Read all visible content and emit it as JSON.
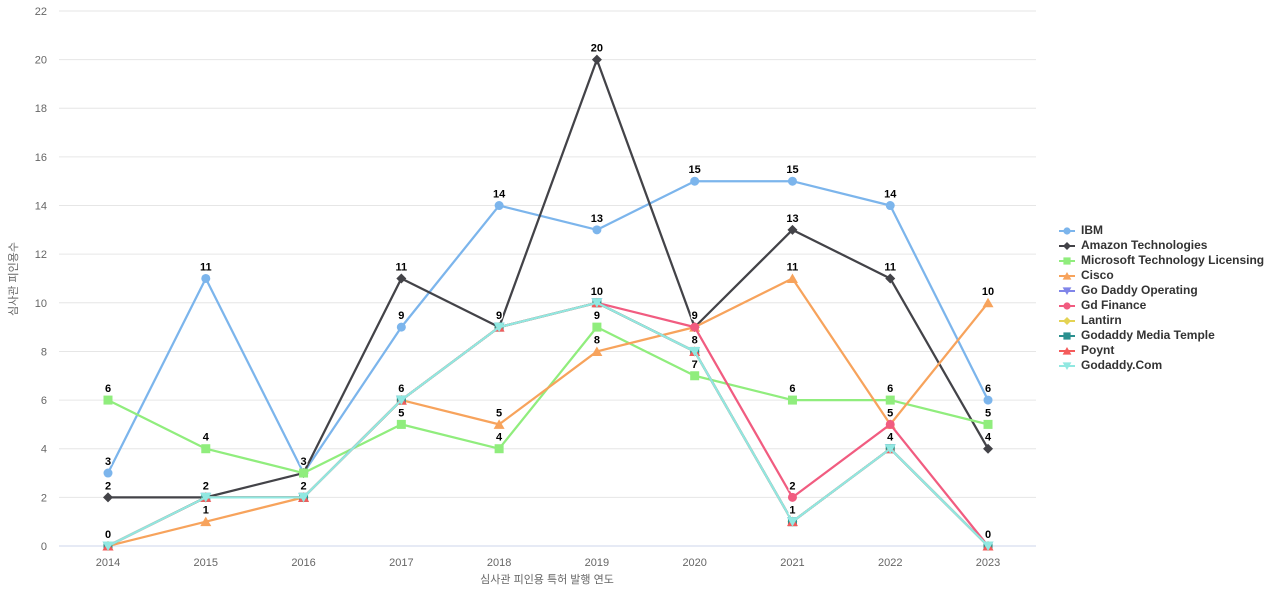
{
  "chart_data": {
    "type": "line",
    "title": "",
    "x": [
      "2014",
      "2015",
      "2016",
      "2017",
      "2018",
      "2019",
      "2020",
      "2021",
      "2022",
      "2023"
    ],
    "xlabel": "심사관 피인용 특허 발행 연도",
    "ylabel": "심사관 피인용수",
    "ylim": [
      0,
      22
    ],
    "yticks": [
      0,
      2,
      4,
      6,
      8,
      10,
      12,
      14,
      16,
      18,
      20,
      22
    ],
    "grid": true,
    "legend_position": "right",
    "data_labels": true,
    "series": [
      {
        "name": "IBM",
        "color": "#7cb5ec",
        "marker": "circle",
        "values": [
          3,
          11,
          3,
          9,
          14,
          13,
          15,
          15,
          14,
          6
        ]
      },
      {
        "name": "Amazon Technologies",
        "color": "#434348",
        "marker": "diamond",
        "values": [
          2,
          2,
          3,
          11,
          9,
          20,
          9,
          13,
          11,
          4
        ]
      },
      {
        "name": "Microsoft Technology Licensing",
        "color": "#90ed7d",
        "marker": "square",
        "values": [
          6,
          4,
          3,
          5,
          4,
          9,
          7,
          6,
          6,
          5
        ]
      },
      {
        "name": "Cisco",
        "color": "#f7a35c",
        "marker": "triangle",
        "values": [
          0,
          1,
          2,
          6,
          5,
          8,
          9,
          11,
          5,
          10
        ]
      },
      {
        "name": "Go Daddy Operating",
        "color": "#8085e9",
        "marker": "triangle-down",
        "values": [
          0,
          2,
          2,
          6,
          9,
          10,
          8,
          1,
          4,
          0
        ]
      },
      {
        "name": "Gd Finance",
        "color": "#f15c80",
        "marker": "circle",
        "values": [
          0,
          2,
          2,
          6,
          9,
          10,
          9,
          2,
          5,
          0
        ]
      },
      {
        "name": "Lantirn",
        "color": "#e4d354",
        "marker": "diamond",
        "values": [
          0,
          2,
          2,
          6,
          9,
          10,
          8,
          1,
          4,
          0
        ]
      },
      {
        "name": "Godaddy Media Temple",
        "color": "#2b908f",
        "marker": "square",
        "values": [
          0,
          2,
          2,
          6,
          9,
          10,
          8,
          1,
          4,
          0
        ]
      },
      {
        "name": "Poynt",
        "color": "#f45b5b",
        "marker": "triangle",
        "values": [
          0,
          2,
          2,
          6,
          9,
          10,
          8,
          1,
          4,
          0
        ]
      },
      {
        "name": "Godaddy.Com",
        "color": "#91e8e1",
        "marker": "triangle-down",
        "values": [
          0,
          2,
          2,
          6,
          9,
          10,
          8,
          1,
          4,
          0
        ]
      }
    ]
  }
}
